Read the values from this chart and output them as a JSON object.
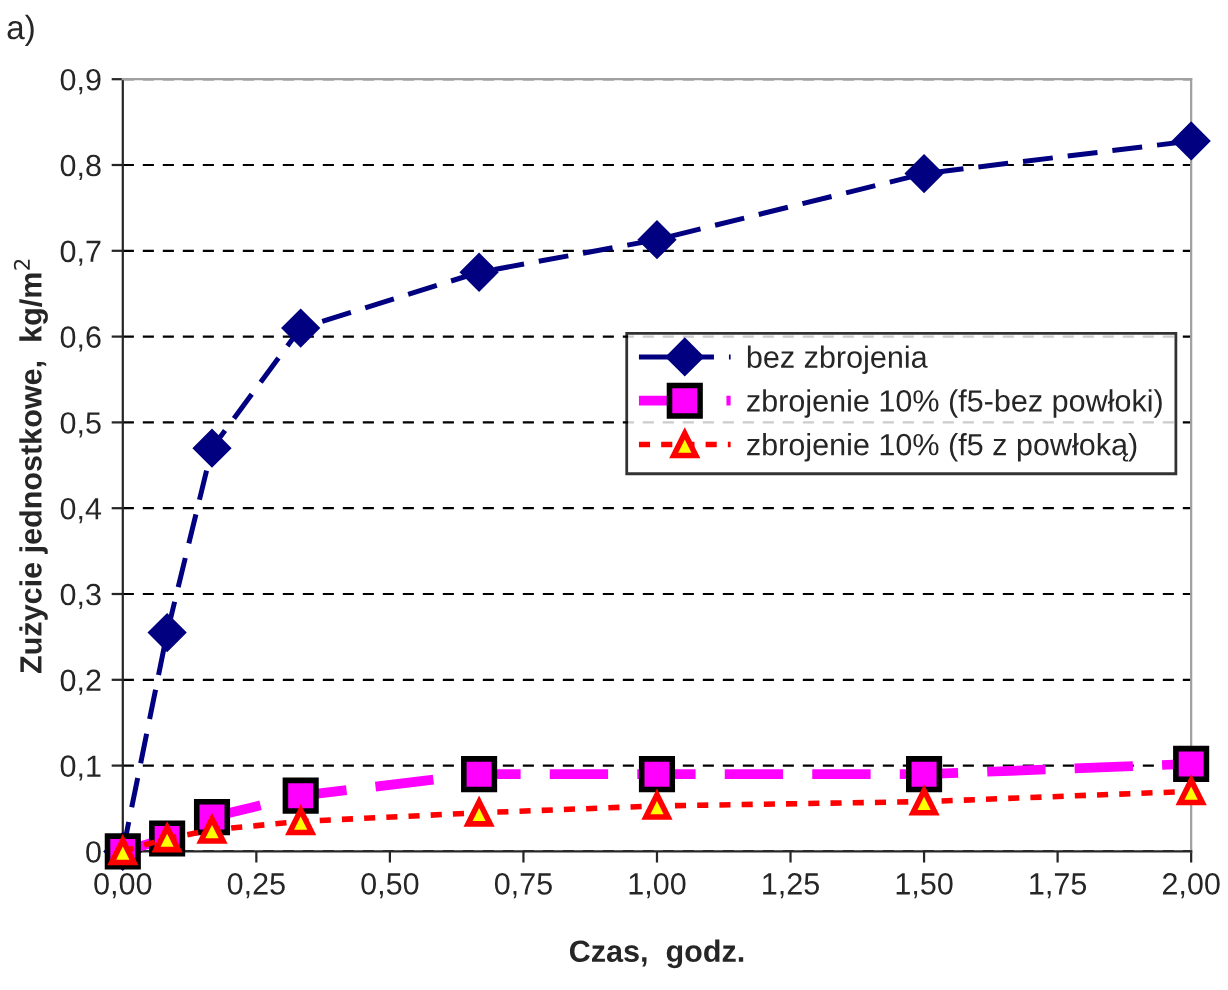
{
  "chart_data": {
    "type": "line",
    "xlabel": "Czas,  godz.",
    "ylabel": "Zużycie jednostkowe,  kg/m$^{2}$",
    "annotations": [
      "a)"
    ],
    "x": [
      0,
      0.083,
      0.167,
      0.333,
      0.667,
      1.0,
      1.5,
      2.0
    ],
    "series": [
      {
        "name": "bez zbrojenia",
        "color": "#000080",
        "marker": "diamond",
        "line_style": "dashed",
        "values": [
          0,
          0.255,
          0.47,
          0.61,
          0.675,
          0.713,
          0.79,
          0.828
        ]
      },
      {
        "name": "zbrojenie 10% (f5-bez powłoki)",
        "color": "#ff00ff",
        "marker": "square",
        "line_style": "dashed",
        "values": [
          0,
          0.015,
          0.04,
          0.065,
          0.09,
          0.09,
          0.09,
          0.102
        ]
      },
      {
        "name": "zbrojenie 10% (f5 z powłoką)",
        "color": "#ff0000",
        "marker": "triangle",
        "line_style": "dotted",
        "values": [
          0,
          0.015,
          0.025,
          0.035,
          0.045,
          0.053,
          0.058,
          0.07
        ]
      }
    ],
    "xlim": [
      0,
      2.0
    ],
    "xticks": [
      {
        "value": 0,
        "label": "0,00"
      },
      {
        "value": 0.25,
        "label": "0,25"
      },
      {
        "value": 0.5,
        "label": "0,50"
      },
      {
        "value": 0.75,
        "label": "0,75"
      },
      {
        "value": 1.0,
        "label": "1,00"
      },
      {
        "value": 1.25,
        "label": "1,25"
      },
      {
        "value": 1.5,
        "label": "1,50"
      },
      {
        "value": 1.75,
        "label": "1,75"
      },
      {
        "value": 2.0,
        "label": "2,00"
      }
    ],
    "ylim": [
      0,
      0.9
    ],
    "yticks": [
      0,
      {
        "value": 0.1,
        "label": "0,1"
      },
      {
        "value": 0.2,
        "label": "0,2"
      },
      {
        "value": 0.3,
        "label": "0,3"
      },
      {
        "value": 0.4,
        "label": "0,4"
      },
      {
        "value": 0.5,
        "label": "0,5"
      },
      {
        "value": 0.6,
        "label": "0,6"
      },
      {
        "value": 0.7,
        "label": "0,7"
      },
      {
        "value": 0.8,
        "label": "0,8"
      },
      {
        "value": 0.9,
        "label": "0,9"
      }
    ],
    "grid": "y",
    "legend": "right"
  }
}
